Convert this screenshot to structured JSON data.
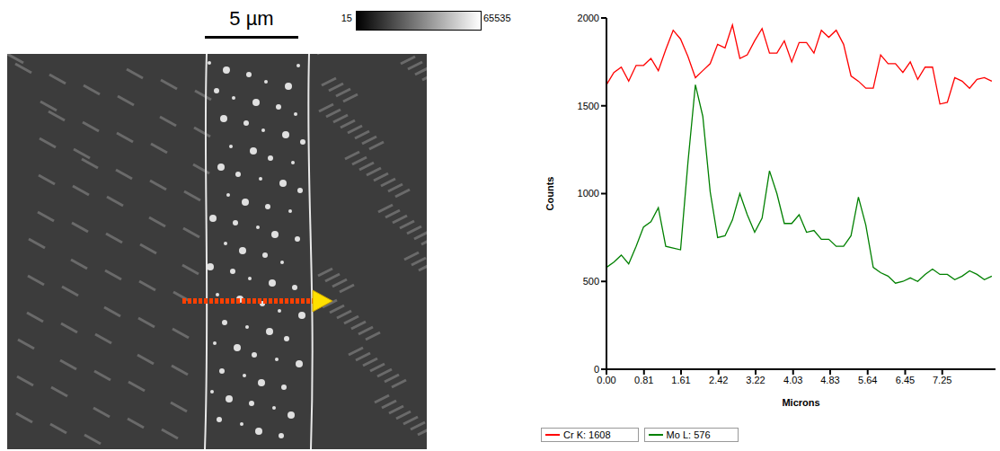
{
  "micrograph": {
    "scale_bar": "5 µm",
    "intensity_range": [
      15,
      65535
    ]
  },
  "chart_data": {
    "type": "line",
    "x_label": "Microns",
    "y_label": "Counts",
    "x": [
      0,
      0.16,
      0.32,
      0.48,
      0.64,
      0.8,
      0.96,
      1.12,
      1.28,
      1.44,
      1.6,
      1.76,
      1.92,
      2.08,
      2.24,
      2.4,
      2.56,
      2.72,
      2.88,
      3.04,
      3.2,
      3.36,
      3.52,
      3.68,
      3.84,
      4.0,
      4.16,
      4.32,
      4.48,
      4.64,
      4.8,
      4.96,
      5.12,
      5.28,
      5.44,
      5.6,
      5.76,
      5.92,
      6.08,
      6.24,
      6.4,
      6.56,
      6.72,
      6.88,
      7.04,
      7.2,
      7.36,
      7.52,
      7.68,
      7.84,
      8.0,
      8.16,
      8.32
    ],
    "series": [
      {
        "name": "Cr K: 1608",
        "color": "#ff0000",
        "values": [
          1620,
          1690,
          1720,
          1640,
          1730,
          1730,
          1770,
          1700,
          1820,
          1930,
          1880,
          1780,
          1660,
          1700,
          1740,
          1850,
          1830,
          1960,
          1770,
          1790,
          1870,
          1940,
          1800,
          1800,
          1870,
          1750,
          1860,
          1860,
          1800,
          1930,
          1890,
          1930,
          1850,
          1670,
          1640,
          1600,
          1600,
          1790,
          1740,
          1740,
          1690,
          1750,
          1650,
          1720,
          1720,
          1510,
          1520,
          1660,
          1640,
          1600,
          1650,
          1660,
          1640
        ]
      },
      {
        "name": "Mo L: 576",
        "color": "#008000",
        "values": [
          580,
          610,
          650,
          600,
          700,
          810,
          840,
          920,
          700,
          690,
          680,
          1180,
          1620,
          1440,
          1010,
          750,
          760,
          850,
          1000,
          880,
          780,
          860,
          1130,
          1000,
          830,
          830,
          880,
          780,
          790,
          740,
          740,
          700,
          700,
          760,
          980,
          820,
          580,
          550,
          530,
          490,
          500,
          520,
          500,
          540,
          570,
          540,
          540,
          510,
          530,
          560,
          540,
          510,
          530
        ]
      }
    ],
    "xlim": [
      0,
      8.4
    ],
    "xticks": [
      {
        "value": 0,
        "label": "0.00"
      },
      {
        "value": 0.81,
        "label": "0.81"
      },
      {
        "value": 1.61,
        "label": "1.61"
      },
      {
        "value": 2.42,
        "label": "2.42"
      },
      {
        "value": 3.22,
        "label": "3.22"
      },
      {
        "value": 4.03,
        "label": "4.03"
      },
      {
        "value": 4.83,
        "label": "4.83"
      },
      {
        "value": 5.64,
        "label": "5.64"
      },
      {
        "value": 6.45,
        "label": "6.45"
      },
      {
        "value": 7.25,
        "label": "7.25"
      }
    ],
    "ylim": [
      0,
      2000
    ],
    "yticks": [
      0,
      500,
      1000,
      1500,
      2000
    ],
    "grid": false,
    "legend": "bottom"
  }
}
